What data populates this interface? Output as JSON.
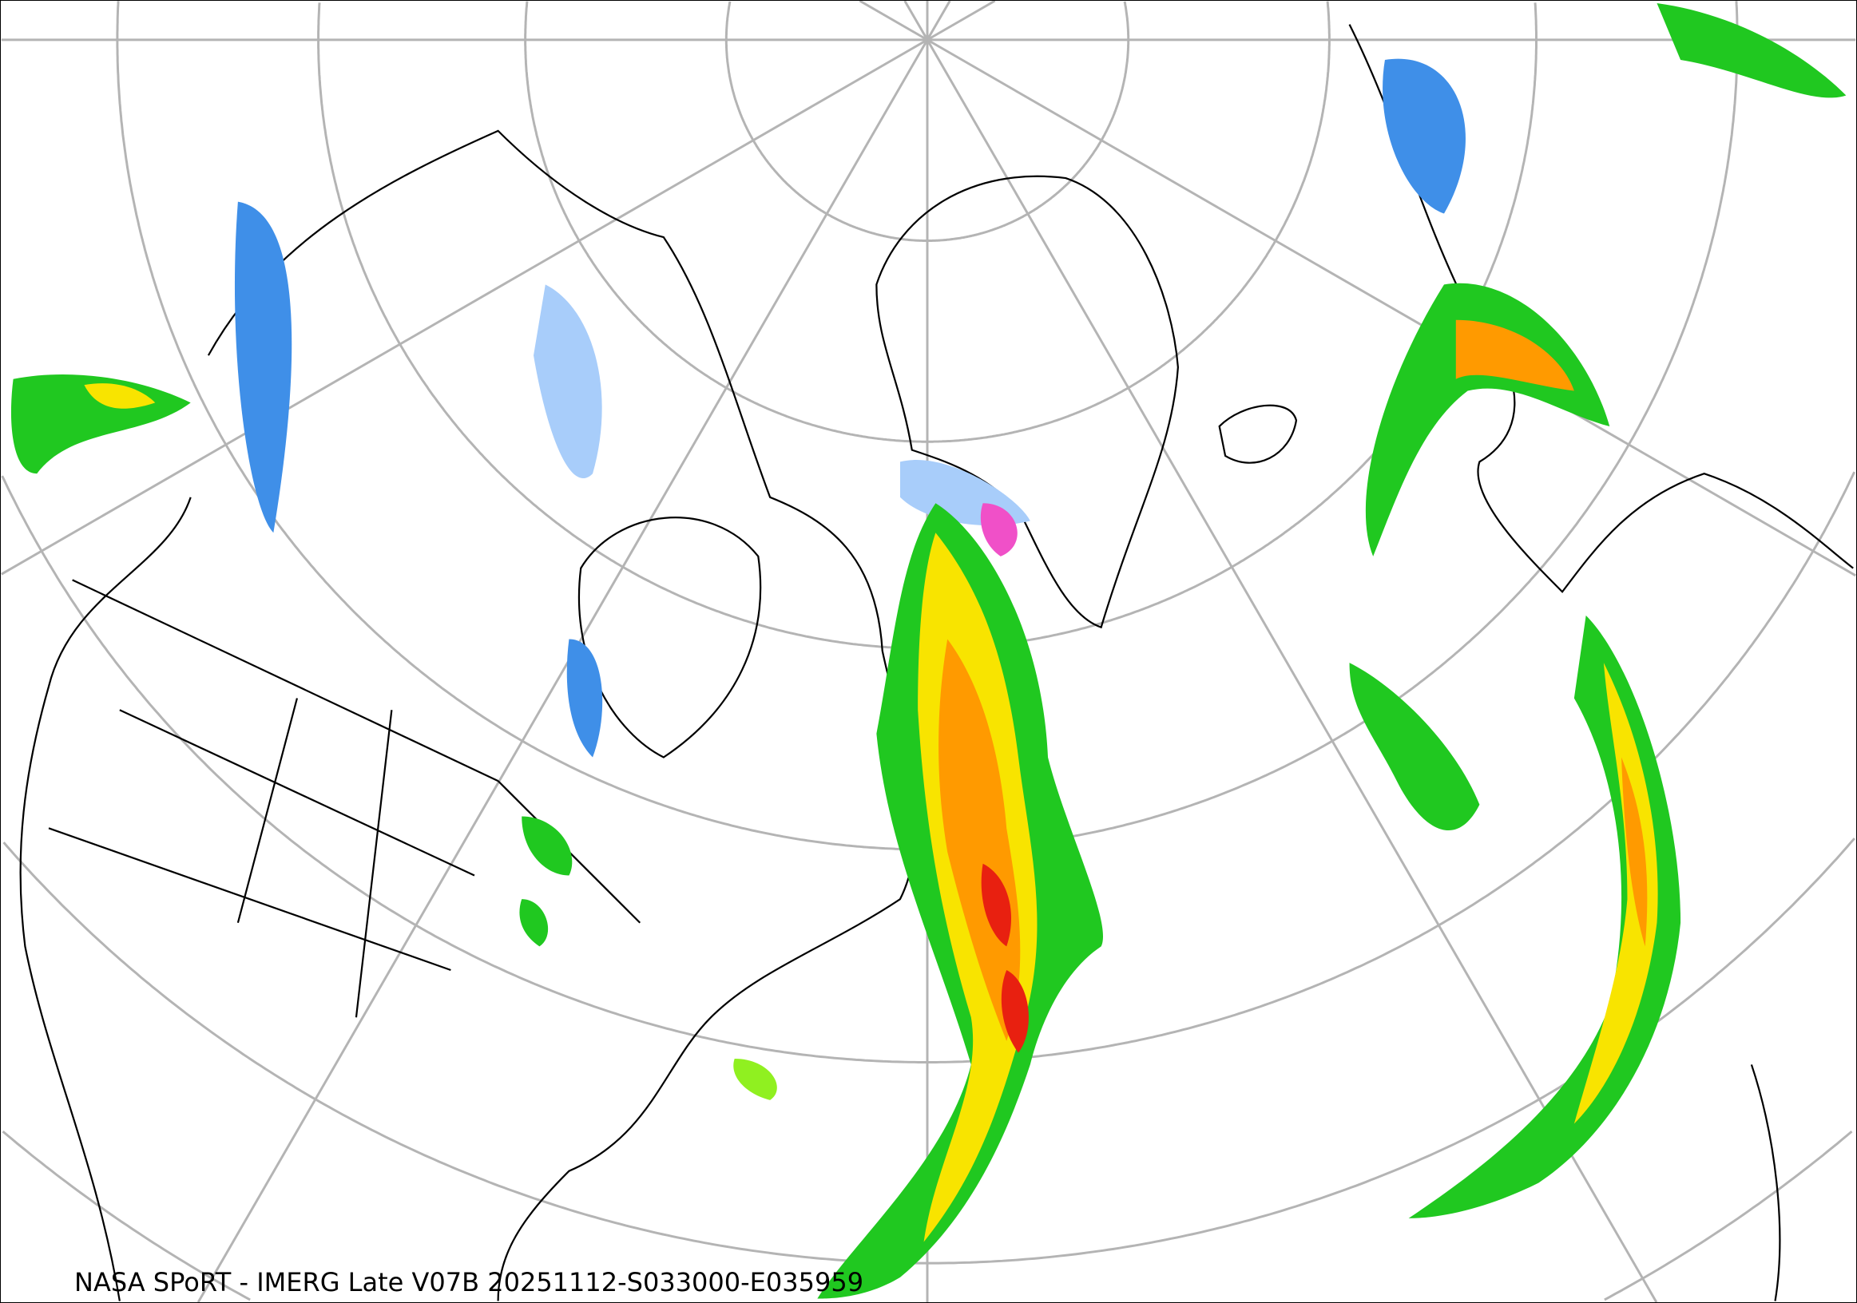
{
  "caption": "NASA SPoRT - IMERG Late V07B 20251112-S033000-E035959",
  "map": {
    "projection": "north-polar-stereographic",
    "graticule_color": "#b4b4b4",
    "coastline_color": "#000000",
    "background_color": "#ffffff",
    "precip_colors": {
      "light_blue": "#a8cdfa",
      "blue": "#3f8fe8",
      "dark_blue": "#1f5fc8",
      "pink": "#f050c8",
      "dark_green": "#1a8a1a",
      "green": "#20c820",
      "light_green": "#90f020",
      "yellow": "#f8e400",
      "orange": "#ff9a00",
      "red": "#e82010",
      "dark_red": "#a00000"
    }
  }
}
